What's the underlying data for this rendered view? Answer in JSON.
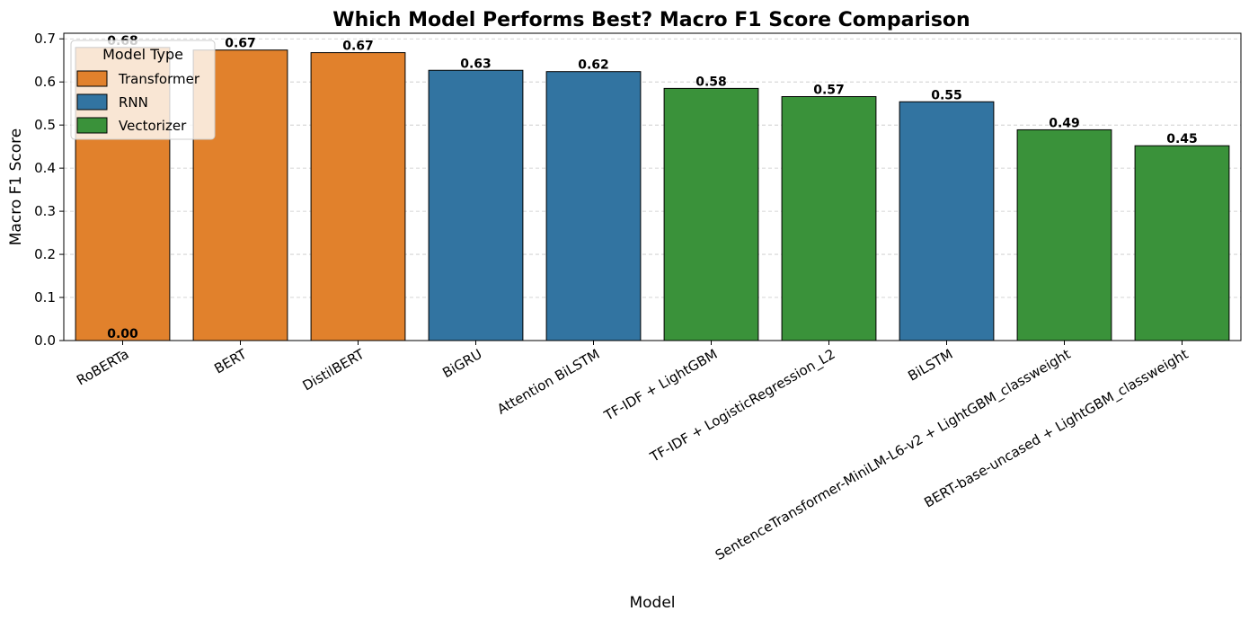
{
  "chart_data": {
    "type": "bar",
    "title": "Which Model Performs Best? Macro F1 Score Comparison",
    "xlabel": "Model",
    "ylabel": "Macro F1 Score",
    "ylim": [
      0,
      0.713
    ],
    "yticks": [
      0.0,
      0.1,
      0.2,
      0.3,
      0.4,
      0.5,
      0.6,
      0.7
    ],
    "ytick_labels": [
      "0.0",
      "0.1",
      "0.2",
      "0.3",
      "0.4",
      "0.5",
      "0.6",
      "0.7"
    ],
    "grid": "y-dashed",
    "legend": {
      "title": "Model Type",
      "placement": "top-left",
      "entries": [
        {
          "name": "Transformer",
          "color": "#e1812c"
        },
        {
          "name": "RNN",
          "color": "#3274a1"
        },
        {
          "name": "Vectorizer",
          "color": "#3a923a"
        }
      ]
    },
    "categories": [
      "RoBERTa",
      "BERT",
      "DistilBERT",
      "BiGRU",
      "Attention BiLSTM",
      "TF-IDF + LightGBM",
      "TF-IDF + LogisticRegression_L2",
      "BiLSTM",
      "SentenceTransformer-MiniLM-L6-v2 + LightGBM_classweight",
      "BERT-base-uncased + LightGBM_classweight"
    ],
    "types": [
      "Transformer",
      "Transformer",
      "Transformer",
      "RNN",
      "RNN",
      "Vectorizer",
      "Vectorizer",
      "RNN",
      "Vectorizer",
      "Vectorizer"
    ],
    "values": [
      0.68,
      0.674,
      0.668,
      0.627,
      0.624,
      0.585,
      0.566,
      0.554,
      0.489,
      0.452
    ],
    "data_labels": [
      "0.68",
      "0.67",
      "0.67",
      "0.63",
      "0.62",
      "0.58",
      "0.57",
      "0.55",
      "0.49",
      "0.45"
    ],
    "extra_label": {
      "category": "RoBERTa",
      "value": 0.0,
      "text": "0.00"
    }
  }
}
